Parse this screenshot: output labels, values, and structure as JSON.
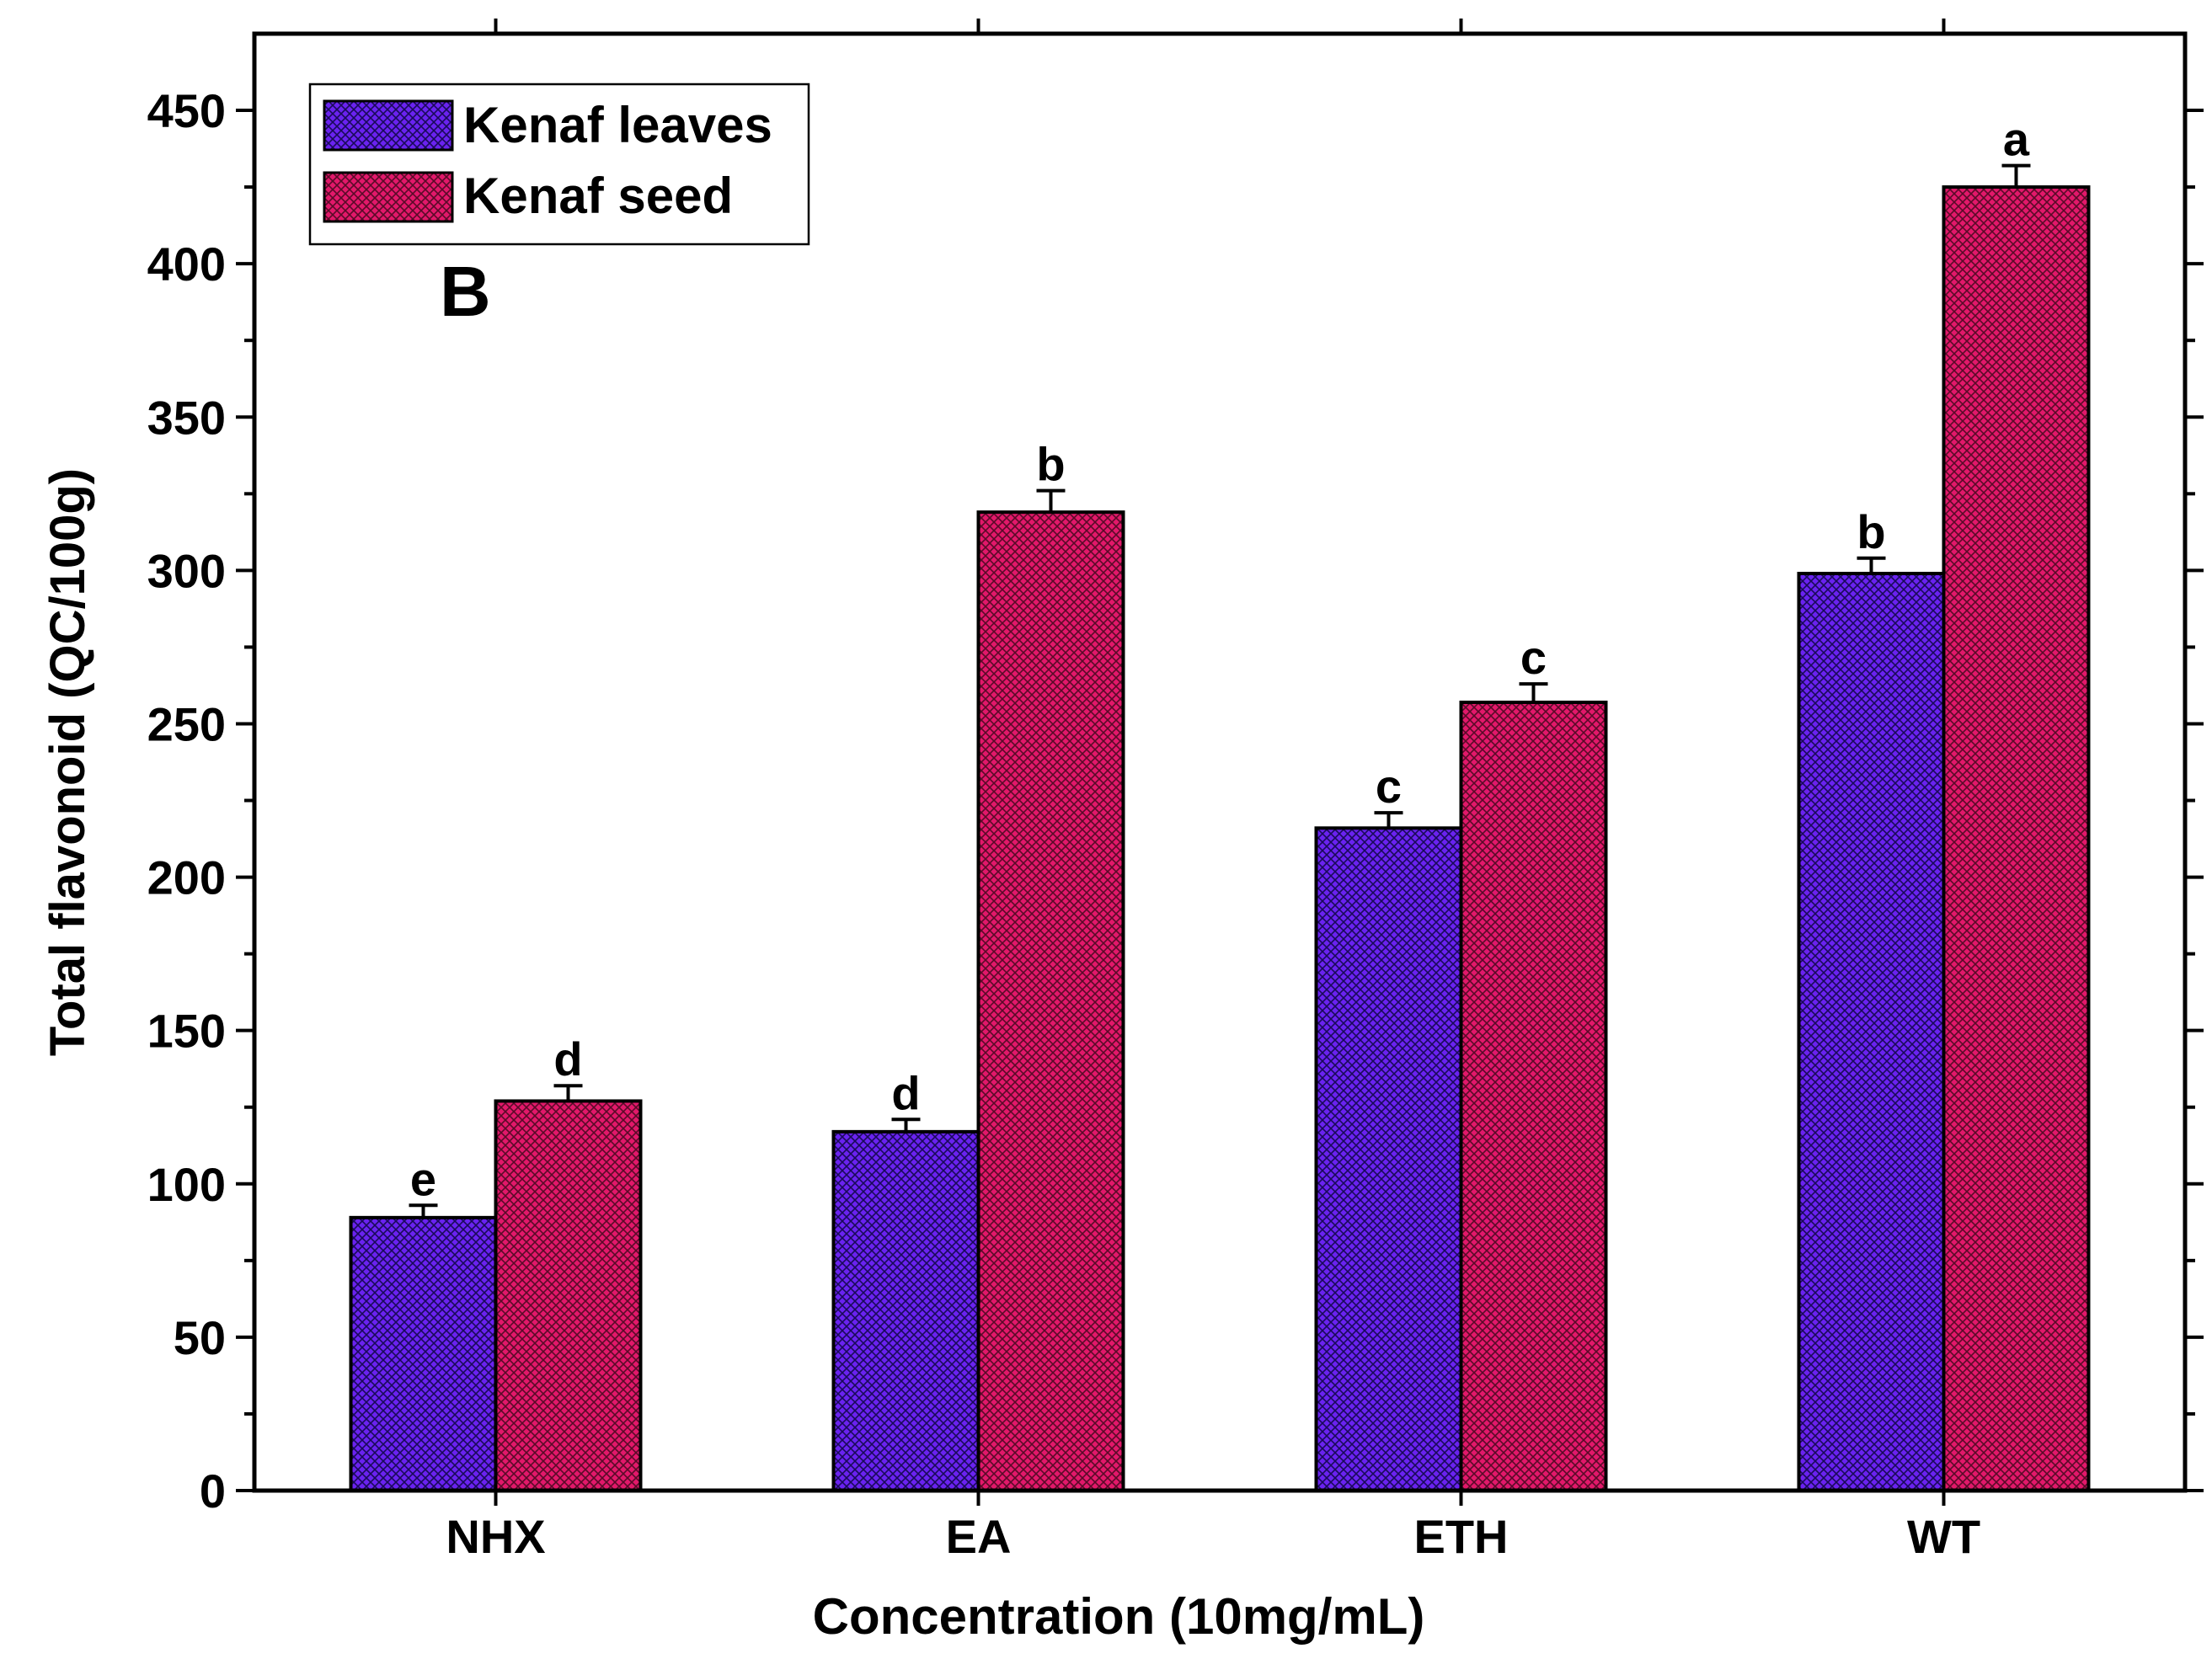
{
  "chart_data": {
    "type": "bar",
    "panel_label": "B",
    "xlabel": "Concentration (10mg/mL)",
    "ylabel": "Total flavonoid (QC/100g)",
    "ylim": [
      0,
      475
    ],
    "yticks": [
      0,
      50,
      100,
      150,
      200,
      250,
      300,
      350,
      400,
      450
    ],
    "ytick_labels": [
      "0",
      "50",
      "100",
      "150",
      "200",
      "250",
      "300",
      "350",
      "400",
      "450"
    ],
    "categories": [
      "NHX",
      "EA",
      "ETH",
      "WT"
    ],
    "legend_position": "top-left",
    "series": [
      {
        "name": "Kenaf leaves",
        "color": "#6a22f0",
        "values": [
          89,
          117,
          216,
          299
        ],
        "errors": [
          4,
          4,
          5,
          5
        ],
        "letters": [
          "e",
          "d",
          "c",
          "b"
        ]
      },
      {
        "name": "Kenaf seed",
        "color": "#e2186a",
        "values": [
          127,
          319,
          257,
          425
        ],
        "errors": [
          5,
          7,
          6,
          7
        ],
        "letters": [
          "d",
          "b",
          "c",
          "a"
        ]
      }
    ]
  }
}
